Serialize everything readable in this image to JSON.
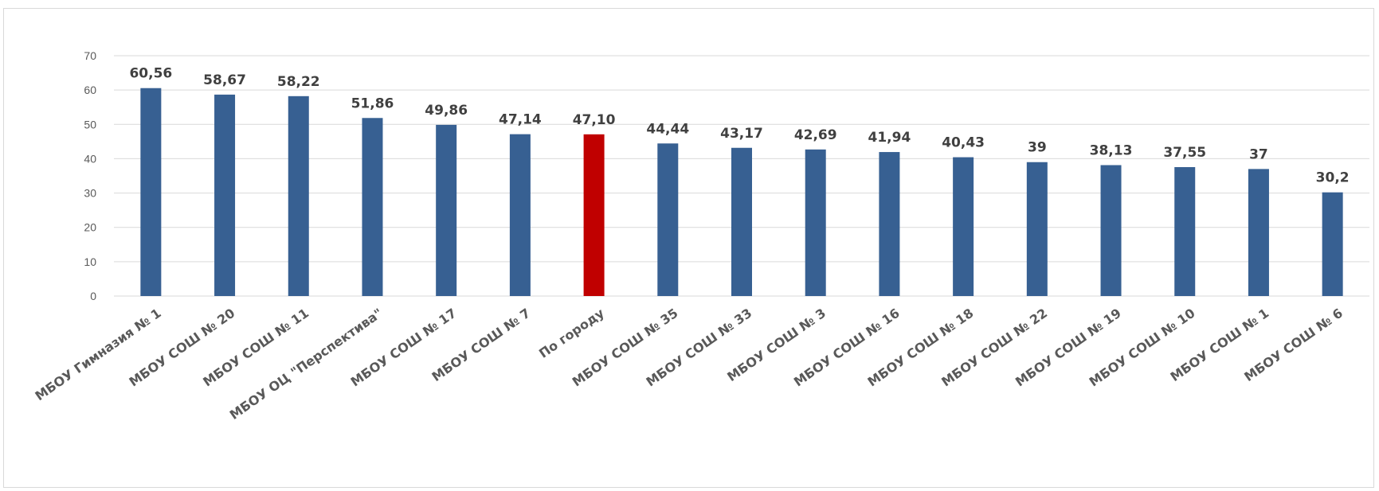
{
  "chart_data": {
    "type": "bar",
    "categories": [
      "МБОУ Гимназия № 1",
      "МБОУ СОШ № 20",
      "МБОУ СОШ № 11",
      "МБОУ ОЦ \"Перспектива\"",
      "МБОУ СОШ № 17",
      "МБОУ СОШ № 7",
      "По городу",
      "МБОУ СОШ № 35",
      "МБОУ СОШ № 33",
      "МБОУ СОШ № 3",
      "МБОУ СОШ № 16",
      "МБОУ СОШ № 18",
      "МБОУ СОШ №  22",
      "МБОУ СОШ № 19",
      "МБОУ СОШ № 10",
      "МБОУ СОШ № 1",
      "МБОУ СОШ № 6"
    ],
    "values": [
      60.56,
      58.67,
      58.22,
      51.86,
      49.86,
      47.14,
      47.1,
      44.44,
      43.17,
      42.69,
      41.94,
      40.43,
      39,
      38.13,
      37.55,
      37,
      30.2
    ],
    "data_labels": [
      "60,56",
      "58,67",
      "58,22",
      "51,86",
      "49,86",
      "47,14",
      "47,10",
      "44,44",
      "43,17",
      "42,69",
      "41,94",
      "40,43",
      "39",
      "38,13",
      "37,55",
      "37",
      "30,2"
    ],
    "highlight_category": "По городу",
    "colors": {
      "bar": "#376092",
      "highlight": "#c00000",
      "grid": "#d9d9d9"
    },
    "ylim": [
      0,
      70
    ],
    "yticks": [
      "0",
      "10",
      "20",
      "30",
      "40",
      "50",
      "60",
      "70"
    ],
    "grid": true,
    "title": "",
    "xlabel": "",
    "ylabel": ""
  }
}
